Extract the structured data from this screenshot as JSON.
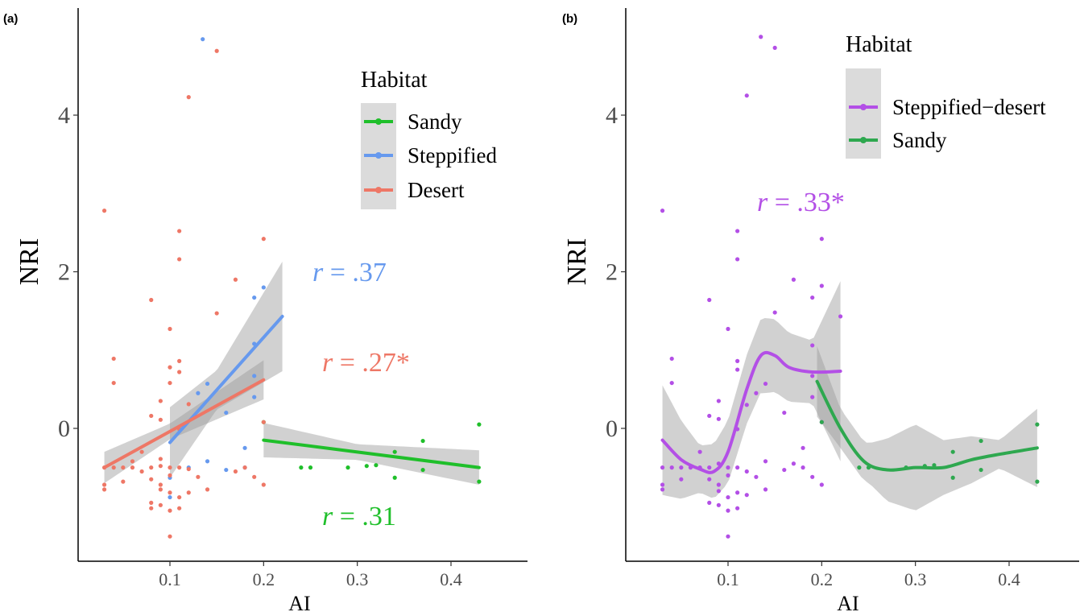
{
  "panels": [
    {
      "label": "(a)",
      "xlabel": "AI",
      "ylabel": "NRI",
      "legend": {
        "title": "Habitat",
        "items": [
          {
            "label": "Sandy",
            "color": "#1fbf2a"
          },
          {
            "label": "Steppified",
            "color": "#6699ee"
          },
          {
            "label": "Desert",
            "color": "#ee7766"
          }
        ]
      },
      "annotations": [
        {
          "r": "r",
          "rest": " = .37",
          "color": "#6699ee"
        },
        {
          "r": "r",
          "rest": " = .27*",
          "color": "#ee7766"
        },
        {
          "r": "r",
          "rest": " = .31",
          "color": "#1fbf2a"
        }
      ]
    },
    {
      "label": "(b)",
      "xlabel": "AI",
      "ylabel": "NRI",
      "legend": {
        "title": "Habitat",
        "items": [
          {
            "label": "Steppified−desert",
            "color": "#b34fe6"
          },
          {
            "label": "Sandy",
            "color": "#2ea84f"
          }
        ]
      },
      "annotations": [
        {
          "r": "r",
          "rest": " = .33*",
          "color": "#b34fe6"
        }
      ]
    }
  ],
  "chart_data": [
    {
      "type": "scatter",
      "title": "",
      "xlabel": "AI",
      "ylabel": "NRI",
      "xlim": [
        0.02,
        0.45
      ],
      "ylim": [
        -1.4,
        5.1
      ],
      "x_ticks": [
        "0.1",
        "0.2",
        "0.3",
        "0.4"
      ],
      "y_ticks": [
        "0",
        "2",
        "4"
      ],
      "legend_position": "top-right",
      "grid": false,
      "series": [
        {
          "name": "Sandy",
          "color": "#1fbf2a",
          "points": [
            [
              0.2,
              0.08
            ],
            [
              0.24,
              -0.5
            ],
            [
              0.25,
              -0.5
            ],
            [
              0.29,
              -0.5
            ],
            [
              0.31,
              -0.48
            ],
            [
              0.32,
              -0.47
            ],
            [
              0.34,
              -0.3
            ],
            [
              0.34,
              -0.63
            ],
            [
              0.37,
              -0.16
            ],
            [
              0.37,
              -0.53
            ],
            [
              0.43,
              0.05
            ],
            [
              0.43,
              -0.68
            ]
          ],
          "fit_line": [
            [
              0.2,
              -0.15
            ],
            [
              0.43,
              -0.5
            ]
          ]
        },
        {
          "name": "Steppified",
          "color": "#6699ee",
          "points": [
            [
              0.135,
              4.97
            ],
            [
              0.2,
              1.8
            ],
            [
              0.19,
              1.67
            ],
            [
              0.19,
              1.08
            ],
            [
              0.19,
              0.67
            ],
            [
              0.19,
              0.4
            ],
            [
              0.16,
              0.2
            ],
            [
              0.14,
              0.57
            ],
            [
              0.13,
              0.45
            ],
            [
              0.18,
              -0.25
            ],
            [
              0.14,
              -0.42
            ],
            [
              0.16,
              -0.53
            ],
            [
              0.12,
              -0.5
            ],
            [
              0.1,
              -0.63
            ],
            [
              0.1,
              -0.88
            ],
            [
              0.18,
              -0.5
            ]
          ],
          "fit_line": [
            [
              0.1,
              -0.18
            ],
            [
              0.22,
              1.43
            ]
          ]
        },
        {
          "name": "Desert",
          "color": "#ee7766",
          "points": [
            [
              0.15,
              4.82
            ],
            [
              0.12,
              4.23
            ],
            [
              0.03,
              2.78
            ],
            [
              0.11,
              2.52
            ],
            [
              0.2,
              2.42
            ],
            [
              0.11,
              2.16
            ],
            [
              0.17,
              1.9
            ],
            [
              0.08,
              1.64
            ],
            [
              0.15,
              1.47
            ],
            [
              0.1,
              1.27
            ],
            [
              0.04,
              0.89
            ],
            [
              0.11,
              0.86
            ],
            [
              0.1,
              0.78
            ],
            [
              0.11,
              0.72
            ],
            [
              0.04,
              0.58
            ],
            [
              0.1,
              0.58
            ],
            [
              0.09,
              0.35
            ],
            [
              0.12,
              0.31
            ],
            [
              0.08,
              0.16
            ],
            [
              0.09,
              0.11
            ],
            [
              0.2,
              0.08
            ],
            [
              0.11,
              -0.01
            ],
            [
              0.07,
              -0.3
            ],
            [
              0.03,
              -0.5
            ],
            [
              0.04,
              -0.5
            ],
            [
              0.05,
              -0.5
            ],
            [
              0.06,
              -0.5
            ],
            [
              0.06,
              -0.42
            ],
            [
              0.07,
              -0.55
            ],
            [
              0.08,
              -0.5
            ],
            [
              0.09,
              -0.48
            ],
            [
              0.09,
              -0.39
            ],
            [
              0.1,
              -0.5
            ],
            [
              0.1,
              -0.6
            ],
            [
              0.11,
              -0.5
            ],
            [
              0.12,
              -0.52
            ],
            [
              0.13,
              -0.62
            ],
            [
              0.03,
              -0.72
            ],
            [
              0.03,
              -0.78
            ],
            [
              0.05,
              -0.68
            ],
            [
              0.08,
              -0.65
            ],
            [
              0.09,
              -0.72
            ],
            [
              0.09,
              -0.78
            ],
            [
              0.1,
              -0.82
            ],
            [
              0.11,
              -0.88
            ],
            [
              0.12,
              -0.82
            ],
            [
              0.08,
              -0.95
            ],
            [
              0.09,
              -0.98
            ],
            [
              0.11,
              -1.02
            ],
            [
              0.1,
              -1.05
            ],
            [
              0.08,
              -1.02
            ],
            [
              0.14,
              -0.78
            ],
            [
              0.17,
              -0.55
            ],
            [
              0.18,
              -0.5
            ],
            [
              0.19,
              -0.62
            ],
            [
              0.2,
              -0.72
            ],
            [
              0.1,
              -1.38
            ]
          ],
          "fit_line": [
            [
              0.03,
              -0.5
            ],
            [
              0.2,
              0.62
            ]
          ]
        }
      ]
    },
    {
      "type": "scatter",
      "title": "",
      "xlabel": "AI",
      "ylabel": "NRI",
      "xlim": [
        0.02,
        0.45
      ],
      "ylim": [
        -1.4,
        5.1
      ],
      "x_ticks": [
        "0.1",
        "0.2",
        "0.3",
        "0.4"
      ],
      "y_ticks": [
        "0",
        "2",
        "4"
      ],
      "legend_position": "top-right",
      "grid": false,
      "series": [
        {
          "name": "Steppified−desert",
          "color": "#b34fe6",
          "points": [
            [
              0.135,
              5.0
            ],
            [
              0.15,
              4.86
            ],
            [
              0.12,
              4.25
            ],
            [
              0.03,
              2.78
            ],
            [
              0.11,
              2.52
            ],
            [
              0.2,
              2.42
            ],
            [
              0.11,
              2.16
            ],
            [
              0.17,
              1.9
            ],
            [
              0.2,
              1.82
            ],
            [
              0.08,
              1.64
            ],
            [
              0.19,
              1.67
            ],
            [
              0.15,
              1.48
            ],
            [
              0.22,
              1.43
            ],
            [
              0.1,
              1.27
            ],
            [
              0.19,
              1.06
            ],
            [
              0.04,
              0.89
            ],
            [
              0.11,
              0.86
            ],
            [
              0.11,
              0.75
            ],
            [
              0.19,
              0.67
            ],
            [
              0.04,
              0.58
            ],
            [
              0.14,
              0.57
            ],
            [
              0.13,
              0.45
            ],
            [
              0.19,
              0.4
            ],
            [
              0.09,
              0.35
            ],
            [
              0.12,
              0.3
            ],
            [
              0.16,
              0.2
            ],
            [
              0.09,
              0.12
            ],
            [
              0.08,
              0.16
            ],
            [
              0.2,
              0.08
            ],
            [
              0.11,
              -0.01
            ],
            [
              0.18,
              -0.25
            ],
            [
              0.07,
              -0.3
            ],
            [
              0.03,
              -0.5
            ],
            [
              0.04,
              -0.5
            ],
            [
              0.05,
              -0.5
            ],
            [
              0.06,
              -0.5
            ],
            [
              0.07,
              -0.5
            ],
            [
              0.08,
              -0.5
            ],
            [
              0.09,
              -0.45
            ],
            [
              0.1,
              -0.5
            ],
            [
              0.1,
              -0.6
            ],
            [
              0.11,
              -0.5
            ],
            [
              0.12,
              -0.55
            ],
            [
              0.13,
              -0.62
            ],
            [
              0.14,
              -0.42
            ],
            [
              0.16,
              -0.53
            ],
            [
              0.17,
              -0.45
            ],
            [
              0.18,
              -0.5
            ],
            [
              0.03,
              -0.72
            ],
            [
              0.03,
              -0.78
            ],
            [
              0.05,
              -0.65
            ],
            [
              0.08,
              -0.65
            ],
            [
              0.09,
              -0.72
            ],
            [
              0.09,
              -0.8
            ],
            [
              0.1,
              -0.88
            ],
            [
              0.11,
              -0.82
            ],
            [
              0.12,
              -0.85
            ],
            [
              0.08,
              -0.95
            ],
            [
              0.09,
              -0.98
            ],
            [
              0.11,
              -1.02
            ],
            [
              0.1,
              -1.05
            ],
            [
              0.14,
              -0.78
            ],
            [
              0.19,
              -0.62
            ],
            [
              0.2,
              -0.72
            ],
            [
              0.1,
              -1.38
            ]
          ],
          "smooth_line": [
            [
              0.03,
              -0.15
            ],
            [
              0.05,
              -0.4
            ],
            [
              0.07,
              -0.52
            ],
            [
              0.085,
              -0.55
            ],
            [
              0.1,
              -0.3
            ],
            [
              0.12,
              0.5
            ],
            [
              0.135,
              0.93
            ],
            [
              0.15,
              0.93
            ],
            [
              0.165,
              0.78
            ],
            [
              0.19,
              0.72
            ],
            [
              0.22,
              0.73
            ]
          ]
        },
        {
          "name": "Sandy",
          "color": "#2ea84f",
          "points": [
            [
              0.2,
              0.08
            ],
            [
              0.24,
              -0.5
            ],
            [
              0.25,
              -0.5
            ],
            [
              0.29,
              -0.5
            ],
            [
              0.31,
              -0.48
            ],
            [
              0.32,
              -0.47
            ],
            [
              0.34,
              -0.3
            ],
            [
              0.34,
              -0.63
            ],
            [
              0.37,
              -0.16
            ],
            [
              0.37,
              -0.53
            ],
            [
              0.43,
              0.05
            ],
            [
              0.43,
              -0.68
            ]
          ],
          "smooth_line": [
            [
              0.195,
              0.6
            ],
            [
              0.22,
              0.0
            ],
            [
              0.245,
              -0.42
            ],
            [
              0.27,
              -0.53
            ],
            [
              0.3,
              -0.5
            ],
            [
              0.33,
              -0.5
            ],
            [
              0.36,
              -0.4
            ],
            [
              0.39,
              -0.33
            ],
            [
              0.43,
              -0.25
            ]
          ]
        }
      ]
    }
  ]
}
